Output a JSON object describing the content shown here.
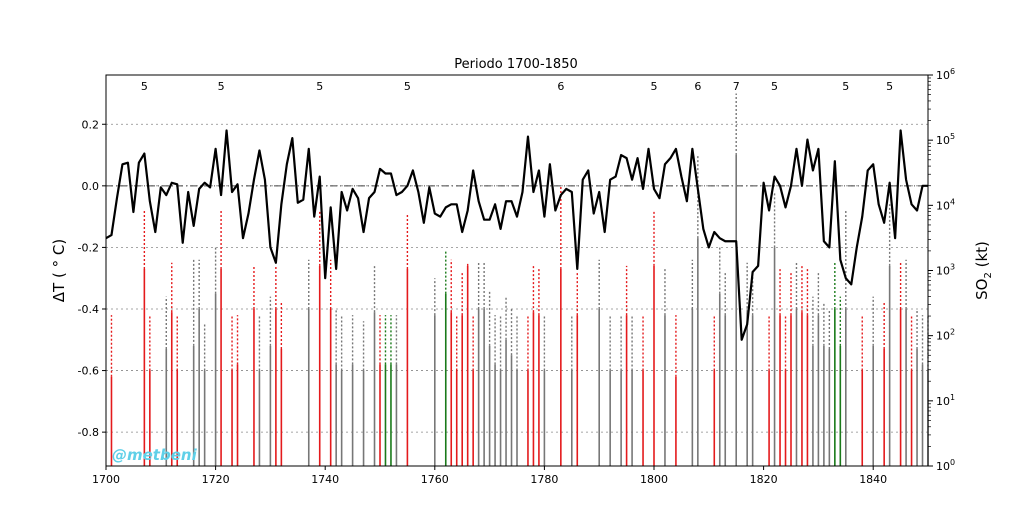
{
  "chart_data": {
    "type": "line",
    "title": "Periodo 1700-1850",
    "xlabel": "",
    "ylabel": "ΔT ( ° C)",
    "y2label": "SO2 (kt)",
    "xlim": [
      1700,
      1850
    ],
    "ylim": [
      -0.91,
      0.36
    ],
    "y2lim_log": [
      0,
      6
    ],
    "xticks": [
      "1700",
      "1720",
      "1740",
      "1760",
      "1780",
      "1800",
      "1820",
      "1840"
    ],
    "yticks": [
      "0.2",
      "0.0",
      "-0.2",
      "-0.4",
      "-0.6",
      "-0.8"
    ],
    "grid": true,
    "temperature": {
      "x": [
        1700,
        1701,
        1702,
        1703,
        1704,
        1705,
        1706,
        1707,
        1708,
        1709,
        1710,
        1711,
        1712,
        1713,
        1714,
        1715,
        1716,
        1717,
        1718,
        1719,
        1720,
        1721,
        1722,
        1723,
        1724,
        1725,
        1726,
        1727,
        1728,
        1729,
        1730,
        1731,
        1732,
        1733,
        1734,
        1735,
        1736,
        1737,
        1738,
        1739,
        1740,
        1741,
        1742,
        1743,
        1744,
        1745,
        1746,
        1747,
        1748,
        1749,
        1750,
        1751,
        1752,
        1753,
        1754,
        1755,
        1756,
        1757,
        1758,
        1759,
        1760,
        1761,
        1762,
        1763,
        1764,
        1765,
        1766,
        1767,
        1768,
        1769,
        1770,
        1771,
        1772,
        1773,
        1774,
        1775,
        1776,
        1777,
        1778,
        1779,
        1780,
        1781,
        1782,
        1783,
        1784,
        1785,
        1786,
        1787,
        1788,
        1789,
        1790,
        1791,
        1792,
        1793,
        1794,
        1795,
        1796,
        1797,
        1798,
        1799,
        1800,
        1801,
        1802,
        1803,
        1804,
        1805,
        1806,
        1807,
        1808,
        1809,
        1810,
        1811,
        1812,
        1813,
        1814,
        1815,
        1816,
        1817,
        1818,
        1819,
        1820,
        1821,
        1822,
        1823,
        1824,
        1825,
        1826,
        1827,
        1828,
        1829,
        1830,
        1831,
        1832,
        1833,
        1834,
        1835,
        1836,
        1837,
        1838,
        1839,
        1840,
        1841,
        1842,
        1843,
        1844,
        1845,
        1846,
        1847,
        1848,
        1849,
        1850
      ],
      "y": [
        -0.17,
        -0.16,
        -0.04,
        0.07,
        0.075,
        -0.085,
        0.075,
        0.105,
        -0.05,
        -0.15,
        -0.005,
        -0.03,
        0.01,
        0.005,
        -0.185,
        -0.02,
        -0.13,
        -0.01,
        0.01,
        -0.005,
        0.12,
        -0.03,
        0.18,
        -0.02,
        0.005,
        -0.17,
        -0.09,
        0.02,
        0.115,
        0.02,
        -0.2,
        -0.25,
        -0.06,
        0.07,
        0.155,
        -0.055,
        -0.045,
        0.12,
        -0.1,
        0.03,
        -0.3,
        -0.07,
        -0.27,
        -0.02,
        -0.08,
        -0.01,
        -0.04,
        -0.15,
        -0.04,
        -0.02,
        0.055,
        0.04,
        0.04,
        -0.03,
        -0.02,
        0.0,
        0.05,
        -0.02,
        -0.12,
        -0.005,
        -0.09,
        -0.1,
        -0.07,
        -0.06,
        -0.06,
        -0.15,
        -0.08,
        0.05,
        -0.05,
        -0.11,
        -0.11,
        -0.06,
        -0.14,
        -0.05,
        -0.05,
        -0.1,
        -0.02,
        0.16,
        -0.02,
        0.05,
        -0.1,
        0.07,
        -0.08,
        -0.03,
        -0.01,
        -0.02,
        -0.27,
        0.02,
        0.05,
        -0.09,
        -0.02,
        -0.15,
        0.02,
        0.03,
        0.1,
        0.09,
        0.02,
        0.09,
        -0.01,
        0.12,
        -0.01,
        -0.04,
        0.07,
        0.09,
        0.12,
        0.03,
        -0.05,
        0.12,
        -0.01,
        -0.14,
        -0.2,
        -0.15,
        -0.17,
        -0.18,
        -0.18,
        -0.18,
        -0.5,
        -0.45,
        -0.28,
        -0.26,
        0.01,
        -0.08,
        0.03,
        0.0,
        -0.07,
        0.0,
        0.12,
        0.0,
        0.15,
        0.05,
        0.12,
        -0.18,
        -0.2,
        0.08,
        -0.24,
        -0.3,
        -0.32,
        -0.2,
        -0.1,
        0.05,
        0.07,
        -0.06,
        -0.12,
        0.01,
        -0.17,
        0.18,
        0.02,
        -0.06,
        -0.08,
        0.0,
        0.0
      ]
    },
    "eruption_markers": [
      {
        "year": 1701,
        "bottom": -0.62,
        "top": -0.42,
        "color": "#e41a1c"
      },
      {
        "year": 1707,
        "bottom": -0.27,
        "top": -0.08,
        "color": "#e41a1c"
      },
      {
        "year": 1708,
        "bottom": -0.6,
        "top": -0.42,
        "color": "#e41a1c"
      },
      {
        "year": 1711,
        "bottom": -0.53,
        "top": -0.36,
        "color": "#777777"
      },
      {
        "year": 1712,
        "bottom": -0.41,
        "top": -0.25,
        "color": "#e41a1c"
      },
      {
        "year": 1713,
        "bottom": -0.6,
        "top": -0.42,
        "color": "#e41a1c"
      },
      {
        "year": 1716,
        "bottom": -0.52,
        "top": -0.24,
        "color": "#777777"
      },
      {
        "year": 1717,
        "bottom": -0.4,
        "top": -0.24,
        "color": "#777777"
      },
      {
        "year": 1718,
        "bottom": -0.6,
        "top": -0.45,
        "color": "#777777"
      },
      {
        "year": 1720,
        "bottom": -0.35,
        "top": -0.2,
        "color": "#777777"
      },
      {
        "year": 1721,
        "bottom": -0.27,
        "top": -0.08,
        "color": "#e41a1c"
      },
      {
        "year": 1723,
        "bottom": -0.6,
        "top": -0.42,
        "color": "#e41a1c"
      },
      {
        "year": 1724,
        "bottom": -0.58,
        "top": -0.42,
        "color": "#e41a1c"
      },
      {
        "year": 1727,
        "bottom": -0.4,
        "top": -0.26,
        "color": "#e41a1c"
      },
      {
        "year": 1728,
        "bottom": -0.6,
        "top": -0.42,
        "color": "#777777"
      },
      {
        "year": 1730,
        "bottom": -0.52,
        "top": -0.36,
        "color": "#777777"
      },
      {
        "year": 1731,
        "bottom": -0.4,
        "top": -0.26,
        "color": "#e41a1c"
      },
      {
        "year": 1732,
        "bottom": -0.53,
        "top": -0.38,
        "color": "#e41a1c"
      },
      {
        "year": 1737,
        "bottom": -0.4,
        "top": -0.24,
        "color": "#777777"
      },
      {
        "year": 1739,
        "bottom": -0.26,
        "top": -0.08,
        "color": "#e41a1c"
      },
      {
        "year": 1741,
        "bottom": -0.4,
        "top": -0.24,
        "color": "#e41a1c"
      },
      {
        "year": 1742,
        "bottom": -0.58,
        "top": -0.4,
        "color": "#777777"
      },
      {
        "year": 1743,
        "bottom": -0.6,
        "top": -0.42,
        "color": "#777777"
      },
      {
        "year": 1745,
        "bottom": -0.58,
        "top": -0.42,
        "color": "#777777"
      },
      {
        "year": 1747,
        "bottom": -0.6,
        "top": -0.44,
        "color": "#777777"
      },
      {
        "year": 1749,
        "bottom": -0.41,
        "top": -0.26,
        "color": "#777777"
      },
      {
        "year": 1750,
        "bottom": -0.58,
        "top": -0.42,
        "color": "#e41a1c"
      },
      {
        "year": 1751,
        "bottom": -0.58,
        "top": -0.42,
        "color": "#1a7a1a"
      },
      {
        "year": 1752,
        "bottom": -0.58,
        "top": -0.42,
        "color": "#1a7a1a"
      },
      {
        "year": 1753,
        "bottom": -0.58,
        "top": -0.42,
        "color": "#777777"
      },
      {
        "year": 1755,
        "bottom": -0.27,
        "top": -0.09,
        "color": "#e41a1c"
      },
      {
        "year": 1760,
        "bottom": -0.42,
        "top": -0.3,
        "color": "#777777"
      },
      {
        "year": 1762,
        "bottom": -0.35,
        "top": -0.21,
        "color": "#1a7a1a"
      },
      {
        "year": 1763,
        "bottom": -0.41,
        "top": -0.24,
        "color": "#e41a1c"
      },
      {
        "year": 1764,
        "bottom": -0.6,
        "top": -0.42,
        "color": "#e41a1c"
      },
      {
        "year": 1765,
        "bottom": -0.42,
        "top": -0.28,
        "color": "#e41a1c"
      },
      {
        "year": 1766,
        "bottom": -0.26,
        "top": -0.25,
        "color": "#e41a1c"
      },
      {
        "year": 1767,
        "bottom": -0.6,
        "top": -0.42,
        "color": "#e41a1c"
      },
      {
        "year": 1768,
        "bottom": -0.4,
        "top": -0.25,
        "color": "#777777"
      },
      {
        "year": 1769,
        "bottom": -0.4,
        "top": -0.25,
        "color": "#777777"
      },
      {
        "year": 1770,
        "bottom": -0.52,
        "top": -0.34,
        "color": "#777777"
      },
      {
        "year": 1771,
        "bottom": -0.58,
        "top": -0.42,
        "color": "#777777"
      },
      {
        "year": 1772,
        "bottom": -0.6,
        "top": -0.42,
        "color": "#777777"
      },
      {
        "year": 1773,
        "bottom": -0.5,
        "top": -0.36,
        "color": "#777777"
      },
      {
        "year": 1774,
        "bottom": -0.55,
        "top": -0.4,
        "color": "#777777"
      },
      {
        "year": 1775,
        "bottom": -0.6,
        "top": -0.42,
        "color": "#777777"
      },
      {
        "year": 1777,
        "bottom": -0.6,
        "top": -0.42,
        "color": "#e41a1c"
      },
      {
        "year": 1778,
        "bottom": -0.41,
        "top": -0.26,
        "color": "#e41a1c"
      },
      {
        "year": 1779,
        "bottom": -0.42,
        "top": -0.27,
        "color": "#e41a1c"
      },
      {
        "year": 1780,
        "bottom": -0.6,
        "top": -0.42,
        "color": "#777777"
      },
      {
        "year": 1783,
        "bottom": -0.27,
        "top": -0.0,
        "color": "#e41a1c"
      },
      {
        "year": 1785,
        "bottom": -0.6,
        "top": -0.42,
        "color": "#777777"
      },
      {
        "year": 1786,
        "bottom": -0.42,
        "top": -0.28,
        "color": "#e41a1c"
      },
      {
        "year": 1790,
        "bottom": -0.4,
        "top": -0.24,
        "color": "#777777"
      },
      {
        "year": 1792,
        "bottom": -0.6,
        "top": -0.42,
        "color": "#777777"
      },
      {
        "year": 1794,
        "bottom": -0.6,
        "top": -0.42,
        "color": "#777777"
      },
      {
        "year": 1795,
        "bottom": -0.42,
        "top": -0.26,
        "color": "#e41a1c"
      },
      {
        "year": 1796,
        "bottom": -0.6,
        "top": -0.42,
        "color": "#777777"
      },
      {
        "year": 1798,
        "bottom": -0.6,
        "top": -0.42,
        "color": "#e41a1c"
      },
      {
        "year": 1800,
        "bottom": -0.26,
        "top": -0.08,
        "color": "#e41a1c"
      },
      {
        "year": 1802,
        "bottom": -0.42,
        "top": -0.27,
        "color": "#777777"
      },
      {
        "year": 1804,
        "bottom": -0.62,
        "top": -0.42,
        "color": "#e41a1c"
      },
      {
        "year": 1807,
        "bottom": -0.4,
        "top": -0.24,
        "color": "#777777"
      },
      {
        "year": 1808,
        "bottom": -0.17,
        "top": 0.1,
        "color": "#777777"
      },
      {
        "year": 1811,
        "bottom": -0.6,
        "top": -0.42,
        "color": "#e41a1c"
      },
      {
        "year": 1812,
        "bottom": -0.35,
        "top": -0.2,
        "color": "#777777"
      },
      {
        "year": 1813,
        "bottom": -0.42,
        "top": -0.28,
        "color": "#777777"
      },
      {
        "year": 1815,
        "bottom": 0.1,
        "top": 0.3,
        "color": "#777777"
      },
      {
        "year": 1817,
        "bottom": -0.41,
        "top": -0.25,
        "color": "#777777"
      },
      {
        "year": 1818,
        "bottom": -0.42,
        "top": -0.28,
        "color": "#777777"
      },
      {
        "year": 1821,
        "bottom": -0.6,
        "top": -0.42,
        "color": "#e41a1c"
      },
      {
        "year": 1822,
        "bottom": -0.2,
        "top": -0.02,
        "color": "#777777"
      },
      {
        "year": 1823,
        "bottom": -0.42,
        "top": -0.27,
        "color": "#e41a1c"
      },
      {
        "year": 1824,
        "bottom": -0.6,
        "top": -0.42,
        "color": "#e41a1c"
      },
      {
        "year": 1825,
        "bottom": -0.42,
        "top": -0.28,
        "color": "#e41a1c"
      },
      {
        "year": 1826,
        "bottom": -0.4,
        "top": -0.25,
        "color": "#777777"
      },
      {
        "year": 1827,
        "bottom": -0.41,
        "top": -0.26,
        "color": "#e41a1c"
      },
      {
        "year": 1828,
        "bottom": -0.42,
        "top": -0.27,
        "color": "#e41a1c"
      },
      {
        "year": 1829,
        "bottom": -0.52,
        "top": -0.36,
        "color": "#777777"
      },
      {
        "year": 1830,
        "bottom": -0.42,
        "top": -0.28,
        "color": "#777777"
      },
      {
        "year": 1831,
        "bottom": -0.52,
        "top": -0.38,
        "color": "#777777"
      },
      {
        "year": 1832,
        "bottom": -0.53,
        "top": -0.4,
        "color": "#777777"
      },
      {
        "year": 1833,
        "bottom": -0.4,
        "top": -0.25,
        "color": "#1a7a1a"
      },
      {
        "year": 1834,
        "bottom": -0.52,
        "top": -0.36,
        "color": "#1a7a1a"
      },
      {
        "year": 1835,
        "bottom": -0.4,
        "top": -0.08,
        "color": "#777777"
      },
      {
        "year": 1838,
        "bottom": -0.6,
        "top": -0.42,
        "color": "#e41a1c"
      },
      {
        "year": 1840,
        "bottom": -0.52,
        "top": -0.36,
        "color": "#777777"
      },
      {
        "year": 1842,
        "bottom": -0.53,
        "top": -0.38,
        "color": "#e41a1c"
      },
      {
        "year": 1843,
        "bottom": -0.26,
        "top": -0.06,
        "color": "#777777"
      },
      {
        "year": 1845,
        "bottom": -0.4,
        "top": -0.25,
        "color": "#e41a1c"
      },
      {
        "year": 1846,
        "bottom": -0.4,
        "top": -0.24,
        "color": "#777777"
      },
      {
        "year": 1847,
        "bottom": -0.6,
        "top": -0.42,
        "color": "#e41a1c"
      },
      {
        "year": 1848,
        "bottom": -0.53,
        "top": -0.4,
        "color": "#777777"
      },
      {
        "year": 1849,
        "bottom": -0.58,
        "top": -0.42,
        "color": "#777777"
      },
      {
        "year": 1850,
        "bottom": -0.6,
        "top": -0.42,
        "color": "#777777"
      }
    ],
    "vei_labels": [
      {
        "year": 1707,
        "text": "5"
      },
      {
        "year": 1721,
        "text": "5"
      },
      {
        "year": 1739,
        "text": "5"
      },
      {
        "year": 1755,
        "text": "5"
      },
      {
        "year": 1783,
        "text": "6"
      },
      {
        "year": 1800,
        "text": "5"
      },
      {
        "year": 1808,
        "text": "6"
      },
      {
        "year": 1815,
        "text": "7"
      },
      {
        "year": 1822,
        "text": "5"
      },
      {
        "year": 1835,
        "text": "5"
      },
      {
        "year": 1843,
        "text": "5"
      }
    ]
  },
  "watermark": "@metbeni",
  "colors": {
    "temperature_line": "#000000",
    "grid": "#888888"
  }
}
